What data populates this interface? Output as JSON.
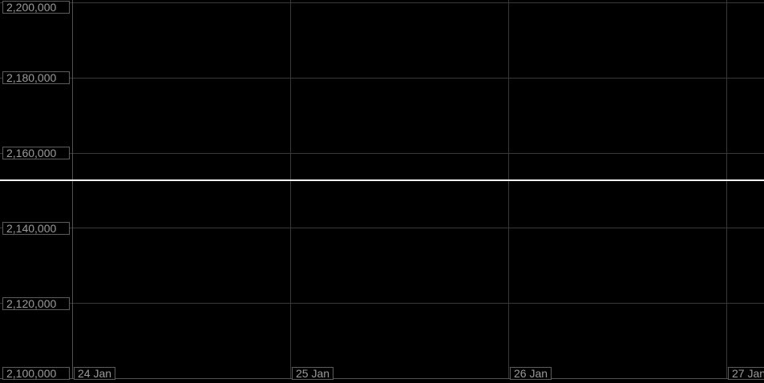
{
  "chart_data": {
    "type": "line",
    "title": "",
    "subtitle": "",
    "series": [],
    "note": "empty dark price chart area with a horizontal current-price line, no plotted series visible",
    "y_axis": {
      "side": "left",
      "min": 2100000,
      "max": 2200000,
      "tick_step": 20000,
      "tick_values": [
        2200000,
        2180000,
        2160000,
        2140000,
        2120000,
        2100000
      ],
      "tick_labels": [
        "2,200,000",
        "2,180,000",
        "2,160,000",
        "2,140,000",
        "2,120,000",
        "2,100,000"
      ]
    },
    "x_axis": {
      "side": "bottom",
      "tick_labels": [
        "24 Jan",
        "25 Jan",
        "26 Jan",
        "27 Jan"
      ]
    },
    "price_line": {
      "value": 2152700,
      "approx": true
    },
    "grid": true,
    "legend": false
  },
  "colors": {
    "background": "#000000",
    "grid": "#383838",
    "axis": "#515151",
    "label_text": "#9b9b9b",
    "label_border": "#5c5c5c",
    "label_background": "#000000",
    "price_line": "#ffffff"
  }
}
